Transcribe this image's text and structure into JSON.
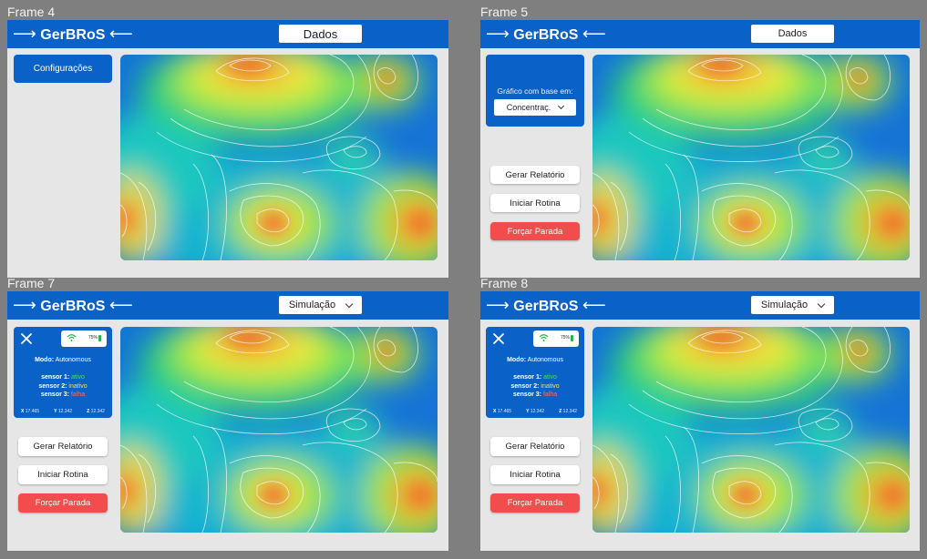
{
  "frames": [
    {
      "label": "Frame 4",
      "app_title": "GerBRoS",
      "top_select": "Dados",
      "config_button": "Configurações"
    },
    {
      "label": "Frame 5",
      "app_title": "GerBRoS",
      "top_select": "Dados",
      "panel_label": "Gráfico com base em:",
      "panel_select": "Concentraç.",
      "buttons": {
        "report": "Gerar Relatório",
        "routine": "Iniciar Rotina",
        "stop": "Forçar Parada"
      }
    },
    {
      "label": "Frame 7",
      "app_title": "GerBRoS",
      "top_select": "Simulação",
      "status": {
        "battery": "75%",
        "mode_label": "Modo:",
        "mode_value": "Autonomous",
        "sensors": [
          {
            "label": "sensor 1:",
            "value": "ativo"
          },
          {
            "label": "sensor 2:",
            "value": "inativo"
          },
          {
            "label": "sensor 3:",
            "value": "falha"
          }
        ],
        "coords": {
          "x_label": "X",
          "x": "17.465",
          "y_label": "Y",
          "y": "12.342",
          "z_label": "Z",
          "z": "12.342"
        }
      },
      "buttons": {
        "report": "Gerar Relatório",
        "routine": "Iniciar Rotina",
        "stop": "Forçar Parada"
      }
    },
    {
      "label": "Frame 8",
      "app_title": "GerBRoS",
      "top_select": "Simulação",
      "status": {
        "battery": "75%",
        "mode_label": "Modo:",
        "mode_value": "Autonomous",
        "sensors": [
          {
            "label": "sensor 1:",
            "value": "ativo"
          },
          {
            "label": "sensor 2:",
            "value": "inativo"
          },
          {
            "label": "sensor 3:",
            "value": "falha"
          }
        ],
        "coords": {
          "x_label": "X",
          "x": "17.465",
          "y_label": "Y",
          "y": "12.342",
          "z_label": "Z",
          "z": "12.342"
        }
      },
      "buttons": {
        "report": "Gerar Relatório",
        "routine": "Iniciar Rotina",
        "stop": "Forçar Parada"
      }
    }
  ],
  "colors": {
    "topbar": "#0a62c9",
    "danger": "#f24c4c",
    "status_ok": "#46e05a",
    "status_warn": "#ffe23c",
    "status_fail": "#ff6a6a"
  },
  "icons": [
    "arrow-right-icon",
    "arrow-left-icon",
    "chevron-down-icon",
    "close-icon",
    "wifi-icon",
    "battery-icon"
  ]
}
